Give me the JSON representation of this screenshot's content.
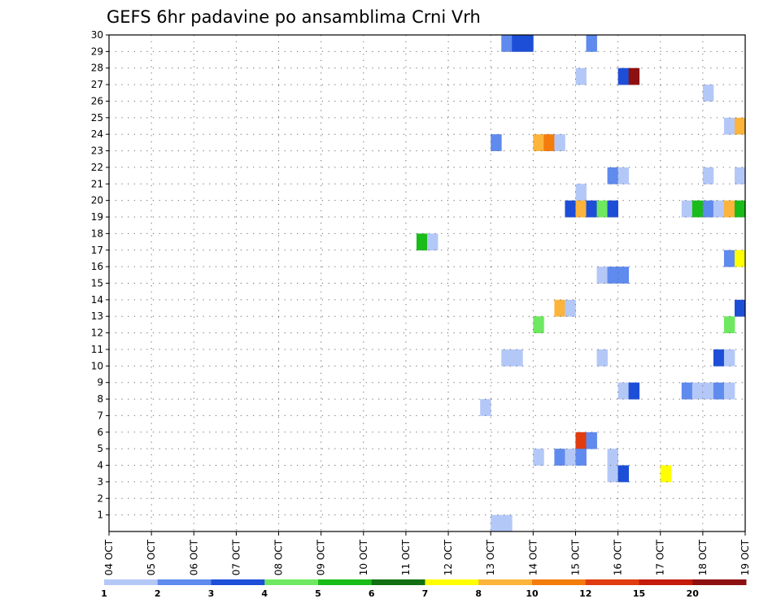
{
  "chart_data": {
    "type": "heatmap",
    "title": "GEFS 6hr padavine po ansamblima Crni Vrh",
    "xlabel": "",
    "ylabel": "",
    "x_ticks": [
      "04 OCT",
      "05 OCT",
      "06 OCT",
      "07 OCT",
      "08 OCT",
      "09 OCT",
      "10 OCT",
      "11 OCT",
      "12 OCT",
      "13 OCT",
      "14 OCT",
      "15 OCT",
      "16 OCT",
      "17 OCT",
      "18 OCT",
      "19 OCT"
    ],
    "x_range": [
      0,
      15
    ],
    "y_ticks": [
      1,
      2,
      3,
      4,
      5,
      6,
      7,
      8,
      9,
      10,
      11,
      12,
      13,
      14,
      15,
      16,
      17,
      18,
      19,
      20,
      21,
      22,
      23,
      24,
      25,
      26,
      27,
      28,
      29,
      30
    ],
    "y_range": [
      0,
      30
    ],
    "grid": true,
    "colorbar": {
      "labels": [
        "1",
        "2",
        "3",
        "4",
        "5",
        "6",
        "7",
        "8",
        "10",
        "12",
        "15",
        "20"
      ],
      "colors": [
        "#b4c8f8",
        "#5f8aee",
        "#1d4ed8",
        "#6ee860",
        "#19bc19",
        "#127012",
        "#ffff00",
        "#fcb43c",
        "#f47c0c",
        "#e03c10",
        "#c41a0a",
        "#8c1010"
      ]
    },
    "cells_note": "x = days since 04 OCT (start of 6-hour step), y = ensemble member, c = colour class 0-11",
    "cells": [
      {
        "x": 9.25,
        "y": 30,
        "c": 1
      },
      {
        "x": 9.5,
        "y": 30,
        "c": 2
      },
      {
        "x": 9.75,
        "y": 30,
        "c": 2
      },
      {
        "x": 11.25,
        "y": 30,
        "c": 1
      },
      {
        "x": 11.0,
        "y": 28,
        "c": 0
      },
      {
        "x": 12.0,
        "y": 28,
        "c": 2
      },
      {
        "x": 12.25,
        "y": 28,
        "c": 11
      },
      {
        "x": 14.0,
        "y": 27,
        "c": 0
      },
      {
        "x": 14.5,
        "y": 25,
        "c": 0
      },
      {
        "x": 14.75,
        "y": 25,
        "c": 7
      },
      {
        "x": 9.0,
        "y": 24,
        "c": 1
      },
      {
        "x": 10.0,
        "y": 24,
        "c": 7
      },
      {
        "x": 10.25,
        "y": 24,
        "c": 8
      },
      {
        "x": 10.5,
        "y": 24,
        "c": 0
      },
      {
        "x": 11.75,
        "y": 22,
        "c": 1
      },
      {
        "x": 12.0,
        "y": 22,
        "c": 0
      },
      {
        "x": 14.0,
        "y": 22,
        "c": 0
      },
      {
        "x": 14.75,
        "y": 22,
        "c": 0
      },
      {
        "x": 11.0,
        "y": 21,
        "c": 0
      },
      {
        "x": 10.75,
        "y": 20,
        "c": 2
      },
      {
        "x": 11.0,
        "y": 20,
        "c": 7
      },
      {
        "x": 11.25,
        "y": 20,
        "c": 2
      },
      {
        "x": 11.5,
        "y": 20,
        "c": 3
      },
      {
        "x": 11.75,
        "y": 20,
        "c": 2
      },
      {
        "x": 13.5,
        "y": 20,
        "c": 0
      },
      {
        "x": 13.75,
        "y": 20,
        "c": 4
      },
      {
        "x": 14.0,
        "y": 20,
        "c": 1
      },
      {
        "x": 14.25,
        "y": 20,
        "c": 0
      },
      {
        "x": 14.5,
        "y": 20,
        "c": 7
      },
      {
        "x": 14.75,
        "y": 20,
        "c": 4
      },
      {
        "x": 7.25,
        "y": 18,
        "c": 4
      },
      {
        "x": 7.5,
        "y": 18,
        "c": 0
      },
      {
        "x": 14.5,
        "y": 17,
        "c": 1
      },
      {
        "x": 14.75,
        "y": 17,
        "c": 6
      },
      {
        "x": 11.5,
        "y": 16,
        "c": 0
      },
      {
        "x": 11.75,
        "y": 16,
        "c": 1
      },
      {
        "x": 12.0,
        "y": 16,
        "c": 1
      },
      {
        "x": 14.75,
        "y": 14,
        "c": 2
      },
      {
        "x": 10.5,
        "y": 14,
        "c": 7
      },
      {
        "x": 10.75,
        "y": 14,
        "c": 0
      },
      {
        "x": 10.0,
        "y": 13,
        "c": 3
      },
      {
        "x": 14.5,
        "y": 13,
        "c": 3
      },
      {
        "x": 9.25,
        "y": 11,
        "c": 0
      },
      {
        "x": 9.5,
        "y": 11,
        "c": 0
      },
      {
        "x": 11.5,
        "y": 11,
        "c": 0
      },
      {
        "x": 14.25,
        "y": 11,
        "c": 2
      },
      {
        "x": 14.5,
        "y": 11,
        "c": 0
      },
      {
        "x": 12.0,
        "y": 9,
        "c": 0
      },
      {
        "x": 12.25,
        "y": 9,
        "c": 2
      },
      {
        "x": 13.5,
        "y": 9,
        "c": 1
      },
      {
        "x": 13.75,
        "y": 9,
        "c": 0
      },
      {
        "x": 14.0,
        "y": 9,
        "c": 0
      },
      {
        "x": 14.25,
        "y": 9,
        "c": 1
      },
      {
        "x": 14.5,
        "y": 9,
        "c": 0
      },
      {
        "x": 8.75,
        "y": 8,
        "c": 0
      },
      {
        "x": 11.0,
        "y": 6,
        "c": 9
      },
      {
        "x": 11.25,
        "y": 6,
        "c": 1
      },
      {
        "x": 10.0,
        "y": 5,
        "c": 0
      },
      {
        "x": 10.5,
        "y": 5,
        "c": 1
      },
      {
        "x": 10.75,
        "y": 5,
        "c": 0
      },
      {
        "x": 11.0,
        "y": 5,
        "c": 1
      },
      {
        "x": 11.75,
        "y": 5,
        "c": 0
      },
      {
        "x": 11.75,
        "y": 4,
        "c": 0
      },
      {
        "x": 12.0,
        "y": 4,
        "c": 2
      },
      {
        "x": 13.0,
        "y": 4,
        "c": 6
      },
      {
        "x": 9.0,
        "y": 1,
        "c": 0
      },
      {
        "x": 9.25,
        "y": 1,
        "c": 0
      }
    ]
  }
}
